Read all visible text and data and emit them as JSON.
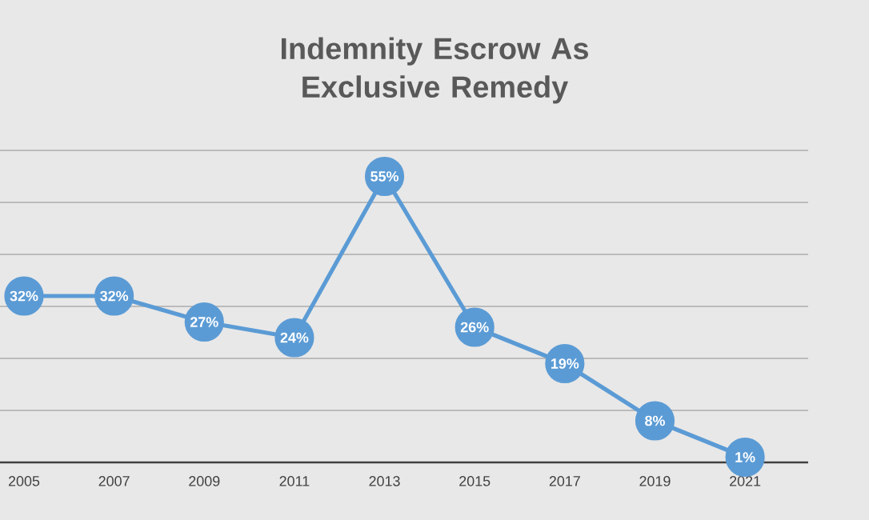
{
  "chart_data": {
    "type": "line",
    "title": "Indemnity Escrow As Exclusive Remedy",
    "categories": [
      "2005",
      "2007",
      "2009",
      "2011",
      "2013",
      "2015",
      "2017",
      "2019",
      "2021"
    ],
    "values": [
      32,
      32,
      27,
      24,
      55,
      26,
      19,
      8,
      1
    ],
    "value_labels": [
      "32%",
      "32%",
      "27%",
      "24%",
      "55%",
      "26%",
      "19%",
      "8%",
      "1%"
    ],
    "color": "#5b9bd5",
    "marker": "circle",
    "line_style": "solid",
    "ylim": [
      0,
      60
    ],
    "yticks": [
      {
        "value": 0,
        "label": null
      },
      {
        "value": 10,
        "label": null
      },
      {
        "value": 20,
        "label": null
      },
      {
        "value": 30,
        "label": null
      },
      {
        "value": 40,
        "label": null
      },
      {
        "value": 50,
        "label": null
      },
      {
        "value": 60,
        "label": null
      }
    ],
    "tick_labels": "x",
    "grid": "y"
  }
}
